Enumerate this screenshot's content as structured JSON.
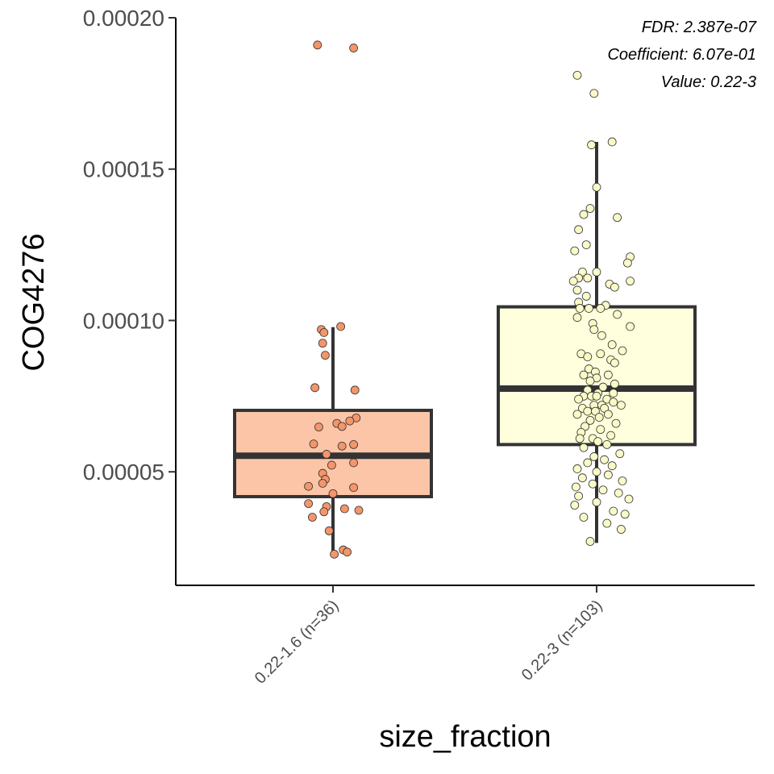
{
  "chart_data": {
    "type": "box",
    "xlabel": "size_fraction",
    "ylabel": "COG4276",
    "ylim": [
      1.25e-05,
      0.0002
    ],
    "yticks": [
      {
        "value": 5e-05,
        "label": "0.00005"
      },
      {
        "value": 0.0001,
        "label": "0.00010"
      },
      {
        "value": 0.00015,
        "label": "0.00015"
      },
      {
        "value": 0.0002,
        "label": "0.00020"
      }
    ],
    "annotations": [
      "FDR: 2.387e-07",
      "Coefficient: 6.07e-01",
      "Value: 0.22-3"
    ],
    "grid": false,
    "legend": "none",
    "categories": [
      {
        "label": "0.22-1.6 (n=36)",
        "fill": "#fcc5a8",
        "point_fill": "#f4956a",
        "whisker_low": 2.25e-05,
        "q1": 4.18e-05,
        "median": 5.53e-05,
        "q3": 7.03e-05,
        "whisker_high": 9.78e-05,
        "points": [
          {
            "jitter": -0.12,
            "value": 0.000191
          },
          {
            "jitter": 0.16,
            "value": 0.00019
          },
          {
            "jitter": 0.06,
            "value": 9.8e-05
          },
          {
            "jitter": -0.09,
            "value": 9.7e-05
          },
          {
            "jitter": -0.07,
            "value": 9.6e-05
          },
          {
            "jitter": -0.08,
            "value": 9.25e-05
          },
          {
            "jitter": -0.06,
            "value": 8.85e-05
          },
          {
            "jitter": -0.14,
            "value": 7.78e-05
          },
          {
            "jitter": 0.17,
            "value": 7.7e-05
          },
          {
            "jitter": 0.18,
            "value": 6.78e-05
          },
          {
            "jitter": 0.13,
            "value": 6.68e-05
          },
          {
            "jitter": 0.03,
            "value": 6.6e-05
          },
          {
            "jitter": 0.07,
            "value": 6.5e-05
          },
          {
            "jitter": -0.11,
            "value": 6.48e-05
          },
          {
            "jitter": -0.15,
            "value": 5.92e-05
          },
          {
            "jitter": 0.16,
            "value": 5.9e-05
          },
          {
            "jitter": 0.07,
            "value": 5.85e-05
          },
          {
            "jitter": -0.05,
            "value": 5.58e-05
          },
          {
            "jitter": 0.16,
            "value": 5.3e-05
          },
          {
            "jitter": -0.01,
            "value": 5.22e-05
          },
          {
            "jitter": -0.08,
            "value": 4.95e-05
          },
          {
            "jitter": -0.06,
            "value": 4.75e-05
          },
          {
            "jitter": -0.08,
            "value": 4.62e-05
          },
          {
            "jitter": -0.19,
            "value": 4.52e-05
          },
          {
            "jitter": 0.16,
            "value": 4.48e-05
          },
          {
            "jitter": 0.0,
            "value": 4.28e-05
          },
          {
            "jitter": -0.19,
            "value": 3.95e-05
          },
          {
            "jitter": -0.05,
            "value": 3.85e-05
          },
          {
            "jitter": 0.09,
            "value": 3.78e-05
          },
          {
            "jitter": 0.2,
            "value": 3.73e-05
          },
          {
            "jitter": -0.07,
            "value": 3.68e-05
          },
          {
            "jitter": -0.16,
            "value": 3.5e-05
          },
          {
            "jitter": -0.03,
            "value": 3.05e-05
          },
          {
            "jitter": 0.08,
            "value": 2.42e-05
          },
          {
            "jitter": 0.01,
            "value": 2.28e-05
          },
          {
            "jitter": 0.11,
            "value": 2.35e-05
          }
        ]
      },
      {
        "label": "0.22-3 (n=103)",
        "fill": "#ffffde",
        "point_fill": "#fafac8",
        "whisker_low": 2.65e-05,
        "q1": 5.9e-05,
        "median": 7.75e-05,
        "q3": 0.0001045,
        "whisker_high": 0.000159,
        "points": [
          {
            "jitter": -0.15,
            "value": 0.000181
          },
          {
            "jitter": -0.02,
            "value": 0.000175
          },
          {
            "jitter": 0.12,
            "value": 0.000159
          },
          {
            "jitter": -0.04,
            "value": 0.000158
          },
          {
            "jitter": 0.0,
            "value": 0.000144
          },
          {
            "jitter": -0.05,
            "value": 0.000137
          },
          {
            "jitter": -0.1,
            "value": 0.000135
          },
          {
            "jitter": 0.16,
            "value": 0.000134
          },
          {
            "jitter": -0.14,
            "value": 0.00013
          },
          {
            "jitter": -0.08,
            "value": 0.000125
          },
          {
            "jitter": -0.17,
            "value": 0.000123
          },
          {
            "jitter": 0.26,
            "value": 0.000121
          },
          {
            "jitter": 0.24,
            "value": 0.000119
          },
          {
            "jitter": -0.11,
            "value": 0.000116
          },
          {
            "jitter": 0.0,
            "value": 0.000116
          },
          {
            "jitter": -0.14,
            "value": 0.000114
          },
          {
            "jitter": -0.07,
            "value": 0.000114
          },
          {
            "jitter": 0.26,
            "value": 0.000113
          },
          {
            "jitter": -0.18,
            "value": 0.000113
          },
          {
            "jitter": 0.1,
            "value": 0.000112
          },
          {
            "jitter": 0.14,
            "value": 0.000111
          },
          {
            "jitter": -0.15,
            "value": 0.00011
          },
          {
            "jitter": -0.08,
            "value": 0.000108
          },
          {
            "jitter": -0.14,
            "value": 0.000106
          },
          {
            "jitter": 0.07,
            "value": 0.000105
          },
          {
            "jitter": -0.13,
            "value": 0.000104
          },
          {
            "jitter": -0.06,
            "value": 0.000104
          },
          {
            "jitter": 0.03,
            "value": 0.000104
          },
          {
            "jitter": 0.16,
            "value": 0.000102
          },
          {
            "jitter": -0.15,
            "value": 0.000101
          },
          {
            "jitter": -0.03,
            "value": 9.9e-05
          },
          {
            "jitter": 0.26,
            "value": 9.8e-05
          },
          {
            "jitter": -0.02,
            "value": 9.7e-05
          },
          {
            "jitter": 0.04,
            "value": 9.5e-05
          },
          {
            "jitter": 0.12,
            "value": 9.2e-05
          },
          {
            "jitter": 0.2,
            "value": 9e-05
          },
          {
            "jitter": -0.12,
            "value": 8.9e-05
          },
          {
            "jitter": 0.03,
            "value": 8.9e-05
          },
          {
            "jitter": -0.07,
            "value": 8.8e-05
          },
          {
            "jitter": 0.11,
            "value": 8.7e-05
          },
          {
            "jitter": 0.14,
            "value": 8.6e-05
          },
          {
            "jitter": -0.06,
            "value": 8.4e-05
          },
          {
            "jitter": -0.01,
            "value": 8.3e-05
          },
          {
            "jitter": -0.1,
            "value": 8.2e-05
          },
          {
            "jitter": 0.09,
            "value": 8.2e-05
          },
          {
            "jitter": 0.0,
            "value": 8.1e-05
          },
          {
            "jitter": -0.05,
            "value": 8e-05
          },
          {
            "jitter": 0.14,
            "value": 7.9e-05
          },
          {
            "jitter": 0.05,
            "value": 7.8e-05
          },
          {
            "jitter": -0.07,
            "value": 7.7e-05
          },
          {
            "jitter": 0.01,
            "value": 7.6e-05
          },
          {
            "jitter": 0.13,
            "value": 7.6e-05
          },
          {
            "jitter": -0.1,
            "value": 7.5e-05
          },
          {
            "jitter": -0.04,
            "value": 7.5e-05
          },
          {
            "jitter": 0.0,
            "value": 7.5e-05
          },
          {
            "jitter": 0.08,
            "value": 7.4e-05
          },
          {
            "jitter": -0.14,
            "value": 7.4e-05
          },
          {
            "jitter": 0.13,
            "value": 7.3e-05
          },
          {
            "jitter": -0.02,
            "value": 7.2e-05
          },
          {
            "jitter": 0.04,
            "value": 7.2e-05
          },
          {
            "jitter": 0.19,
            "value": 7.2e-05
          },
          {
            "jitter": -0.11,
            "value": 7.1e-05
          },
          {
            "jitter": 0.06,
            "value": 7.1e-05
          },
          {
            "jitter": -0.07,
            "value": 7e-05
          },
          {
            "jitter": -0.01,
            "value": 7e-05
          },
          {
            "jitter": 0.09,
            "value": 6.9e-05
          },
          {
            "jitter": -0.15,
            "value": 6.9e-05
          },
          {
            "jitter": 0.02,
            "value": 6.8e-05
          },
          {
            "jitter": -0.05,
            "value": 6.7e-05
          },
          {
            "jitter": 0.15,
            "value": 6.6e-05
          },
          {
            "jitter": -0.09,
            "value": 6.5e-05
          },
          {
            "jitter": 0.03,
            "value": 6.4e-05
          },
          {
            "jitter": -0.12,
            "value": 6.3e-05
          },
          {
            "jitter": 0.11,
            "value": 6.2e-05
          },
          {
            "jitter": -0.03,
            "value": 6.1e-05
          },
          {
            "jitter": -0.13,
            "value": 6.1e-05
          },
          {
            "jitter": 0.01,
            "value": 6e-05
          },
          {
            "jitter": 0.08,
            "value": 5.9e-05
          },
          {
            "jitter": -0.1,
            "value": 5.8e-05
          },
          {
            "jitter": 0.18,
            "value": 5.6e-05
          },
          {
            "jitter": -0.02,
            "value": 5.5e-05
          },
          {
            "jitter": 0.06,
            "value": 5.4e-05
          },
          {
            "jitter": -0.07,
            "value": 5.3e-05
          },
          {
            "jitter": 0.12,
            "value": 5.2e-05
          },
          {
            "jitter": -0.15,
            "value": 5.1e-05
          },
          {
            "jitter": 0.0,
            "value": 5e-05
          },
          {
            "jitter": 0.09,
            "value": 4.9e-05
          },
          {
            "jitter": -0.11,
            "value": 4.8e-05
          },
          {
            "jitter": 0.2,
            "value": 4.7e-05
          },
          {
            "jitter": -0.03,
            "value": 4.6e-05
          },
          {
            "jitter": -0.16,
            "value": 4.5e-05
          },
          {
            "jitter": 0.05,
            "value": 4.4e-05
          },
          {
            "jitter": 0.17,
            "value": 4.3e-05
          },
          {
            "jitter": -0.14,
            "value": 4.2e-05
          },
          {
            "jitter": 0.25,
            "value": 4.1e-05
          },
          {
            "jitter": 0.0,
            "value": 4e-05
          },
          {
            "jitter": -0.17,
            "value": 3.9e-05
          },
          {
            "jitter": 0.13,
            "value": 3.7e-05
          },
          {
            "jitter": 0.22,
            "value": 3.6e-05
          },
          {
            "jitter": -0.1,
            "value": 3.5e-05
          },
          {
            "jitter": 0.08,
            "value": 3.3e-05
          },
          {
            "jitter": 0.19,
            "value": 3.1e-05
          },
          {
            "jitter": -0.05,
            "value": 2.7e-05
          }
        ]
      }
    ]
  }
}
